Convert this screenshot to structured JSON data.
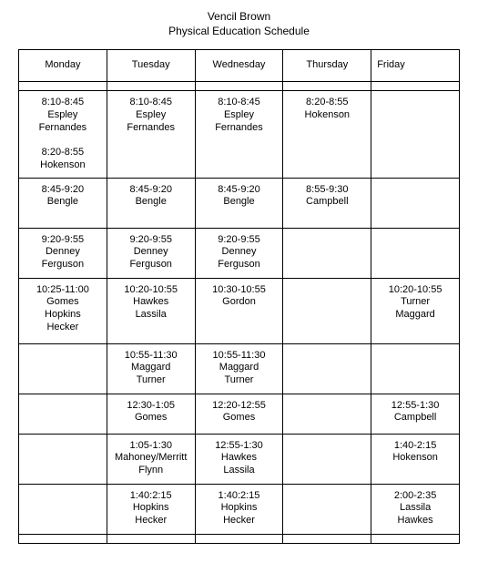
{
  "header": {
    "name": "Vencil Brown",
    "subtitle": "Physical Education Schedule"
  },
  "days": {
    "mon": "Monday",
    "tue": "Tuesday",
    "wed": "Wednesday",
    "thu": "Thursday",
    "fri": "Friday"
  },
  "rows": [
    {
      "rowClass": "tall",
      "cells": [
        "8:10-8:45\nEspley\nFernandes\n\n8:20-8:55\nHokenson",
        "8:10-8:45\nEspley\nFernandes",
        "8:10-8:45\nEspley\nFernandes",
        "8:20-8:55\nHokenson",
        ""
      ]
    },
    {
      "rowClass": "med",
      "cells": [
        "8:45-9:20\nBengle",
        "8:45-9:20\nBengle",
        "8:45-9:20\nBengle",
        "8:55-9:30\nCampbell",
        ""
      ]
    },
    {
      "rowClass": "med",
      "cells": [
        "9:20-9:55\nDenney\nFerguson",
        "9:20-9:55\nDenney\nFerguson",
        "9:20-9:55\nDenney\nFerguson",
        "",
        ""
      ]
    },
    {
      "rowClass": "big",
      "cells": [
        "10:25-11:00\nGomes\nHopkins\nHecker",
        "10:20-10:55\nHawkes\nLassila",
        "10:30-10:55\nGordon",
        "",
        "10:20-10:55\nTurner\nMaggard"
      ]
    },
    {
      "rowClass": "med",
      "cells": [
        "",
        "10:55-11:30\nMaggard\nTurner",
        "10:55-11:30\nMaggard\nTurner",
        "",
        ""
      ]
    },
    {
      "rowClass": "short",
      "cells": [
        "",
        "12:30-1:05\nGomes",
        "12:20-12:55\nGomes",
        "",
        "12:55-1:30\nCampbell"
      ]
    },
    {
      "rowClass": "med",
      "cells": [
        "",
        "1:05-1:30\nMahoney/Merritt\nFlynn",
        "12:55-1:30\nHawkes\nLassila",
        "",
        "1:40-2:15\nHokenson"
      ]
    },
    {
      "rowClass": "med",
      "cells": [
        "",
        "1:40:2:15\nHopkins\nHecker",
        "1:40:2:15\nHopkins\nHecker",
        "",
        "2:00-2:35\nLassila\nHawkes"
      ]
    }
  ]
}
